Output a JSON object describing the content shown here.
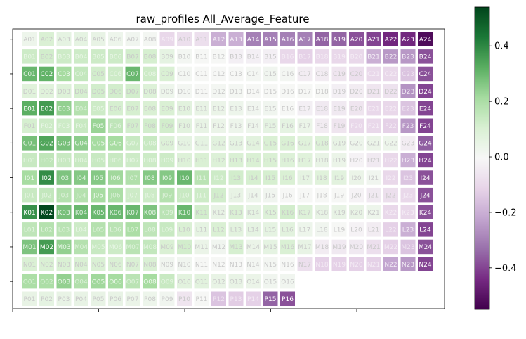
{
  "chart_data": {
    "type": "heatmap",
    "title": "raw_profiles All_Average_Feature",
    "rows": [
      "A",
      "B",
      "C",
      "D",
      "E",
      "F",
      "G",
      "H",
      "I",
      "J",
      "K",
      "L",
      "M",
      "N",
      "O",
      "P"
    ],
    "columns": [
      "01",
      "02",
      "03",
      "04",
      "05",
      "06",
      "07",
      "08",
      "09",
      "10",
      "11",
      "12",
      "13",
      "14",
      "15",
      "16",
      "17",
      "18",
      "19",
      "20",
      "21",
      "22",
      "23",
      "24"
    ],
    "colormap": "PRGn",
    "vmin": -0.55,
    "vmax": 0.54,
    "colorbar_ticks": [
      0.4,
      0.2,
      0.0,
      -0.2,
      -0.4
    ],
    "colorbar_tick_labels": [
      "0.4",
      "0.2",
      "0.0",
      "−0.2",
      "−0.4"
    ],
    "grid": false,
    "values": [
      [
        0.03,
        0.1,
        0.06,
        0.06,
        0.05,
        0.03,
        0.02,
        0.01,
        -0.1,
        -0.08,
        -0.08,
        -0.2,
        -0.2,
        -0.3,
        -0.3,
        -0.3,
        -0.3,
        -0.35,
        -0.35,
        -0.38,
        -0.4,
        -0.45,
        -0.45,
        -0.52
      ],
      [
        0.13,
        0.12,
        0.13,
        0.13,
        0.13,
        0.13,
        0.12,
        0.11,
        0.06,
        0.01,
        0.0,
        0.0,
        -0.03,
        -0.03,
        -0.03,
        -0.1,
        -0.12,
        -0.1,
        -0.1,
        -0.1,
        -0.2,
        -0.25,
        -0.25,
        -0.38
      ],
      [
        0.3,
        0.31,
        0.21,
        0.15,
        0.12,
        0.13,
        0.3,
        0.13,
        0.1,
        0.01,
        0.0,
        0.0,
        0.0,
        0.01,
        0.02,
        0.01,
        -0.04,
        -0.04,
        -0.06,
        -0.08,
        -0.1,
        -0.1,
        -0.15,
        -0.38
      ],
      [
        0.08,
        0.08,
        0.09,
        0.11,
        0.12,
        0.12,
        0.12,
        0.09,
        0.03,
        0.01,
        0.0,
        0.01,
        0.01,
        0.0,
        0.0,
        0.0,
        0.0,
        0.0,
        -0.03,
        -0.04,
        -0.06,
        -0.07,
        -0.26,
        -0.4
      ],
      [
        0.32,
        0.36,
        0.24,
        0.18,
        0.13,
        0.11,
        0.11,
        0.1,
        0.1,
        0.07,
        0.05,
        0.04,
        0.03,
        0.02,
        0.02,
        0.0,
        -0.03,
        -0.05,
        -0.05,
        -0.06,
        -0.1,
        -0.1,
        -0.15,
        -0.4
      ],
      [
        0.11,
        0.13,
        0.13,
        0.14,
        0.23,
        0.16,
        0.12,
        0.12,
        0.12,
        0.07,
        0.05,
        0.04,
        0.03,
        0.03,
        0.06,
        0.06,
        0.04,
        -0.04,
        -0.06,
        -0.1,
        -0.1,
        -0.12,
        -0.25,
        -0.4
      ],
      [
        0.28,
        0.34,
        0.28,
        0.25,
        0.21,
        0.21,
        0.14,
        0.14,
        0.09,
        0.06,
        0.06,
        0.07,
        0.06,
        0.07,
        0.1,
        0.1,
        0.08,
        0.09,
        0.05,
        0.03,
        0.04,
        0.03,
        -0.04,
        -0.36
      ],
      [
        0.14,
        0.16,
        0.14,
        0.14,
        0.14,
        0.14,
        0.13,
        0.13,
        0.13,
        0.09,
        0.1,
        0.09,
        0.1,
        0.1,
        0.1,
        0.09,
        0.08,
        0.05,
        0.04,
        -0.02,
        -0.05,
        -0.1,
        -0.2,
        -0.4
      ],
      [
        0.21,
        0.39,
        0.27,
        0.26,
        0.26,
        0.22,
        0.19,
        0.26,
        0.26,
        0.3,
        0.17,
        0.13,
        0.12,
        0.11,
        0.11,
        0.1,
        0.06,
        0.08,
        0.07,
        0.04,
        0.02,
        -0.1,
        -0.15,
        -0.38
      ],
      [
        0.14,
        0.15,
        0.18,
        0.18,
        0.21,
        0.2,
        0.13,
        0.13,
        0.18,
        0.14,
        0.13,
        0.12,
        0.05,
        0.03,
        0.02,
        0.0,
        0.0,
        0.0,
        0.0,
        -0.02,
        -0.05,
        -0.08,
        -0.1,
        -0.38
      ],
      [
        0.38,
        0.53,
        0.28,
        0.3,
        0.3,
        0.3,
        0.3,
        0.27,
        0.17,
        0.3,
        0.12,
        0.05,
        0.1,
        0.06,
        0.09,
        0.12,
        0.09,
        0.05,
        0.05,
        0.05,
        0.03,
        -0.1,
        -0.1,
        -0.38
      ],
      [
        0.16,
        0.18,
        0.17,
        0.13,
        0.18,
        0.17,
        0.2,
        0.16,
        0.14,
        0.1,
        0.06,
        0.1,
        0.07,
        0.06,
        0.06,
        0.07,
        0.03,
        0.02,
        0.0,
        -0.02,
        -0.04,
        -0.12,
        -0.2,
        -0.4
      ],
      [
        0.27,
        0.36,
        0.24,
        0.18,
        0.14,
        0.13,
        0.17,
        0.15,
        0.1,
        0.12,
        0.04,
        0.02,
        0.11,
        0.04,
        0.06,
        0.1,
        0.05,
        -0.04,
        -0.05,
        -0.05,
        -0.08,
        -0.12,
        -0.15,
        -0.38
      ],
      [
        0.1,
        0.1,
        0.1,
        0.1,
        0.1,
        0.1,
        0.1,
        0.1,
        0.02,
        0.02,
        0.0,
        0.0,
        0.0,
        0.01,
        0.01,
        0.0,
        -0.08,
        -0.12,
        -0.12,
        -0.12,
        -0.12,
        -0.22,
        -0.25,
        -0.4
      ],
      [
        0.2,
        0.2,
        0.24,
        0.19,
        0.22,
        0.21,
        0.17,
        0.21,
        0.14,
        0.07,
        0.07,
        0.05,
        0.05,
        0.04,
        0.02,
        0.02,
        null,
        null,
        null,
        null,
        null,
        null,
        null,
        null
      ],
      [
        0.05,
        0.06,
        0.05,
        0.05,
        0.05,
        0.05,
        0.04,
        0.03,
        0.02,
        -0.06,
        0.0,
        -0.15,
        -0.13,
        -0.12,
        -0.35,
        -0.38,
        null,
        null,
        null,
        null,
        null,
        null,
        null,
        null
      ]
    ]
  }
}
